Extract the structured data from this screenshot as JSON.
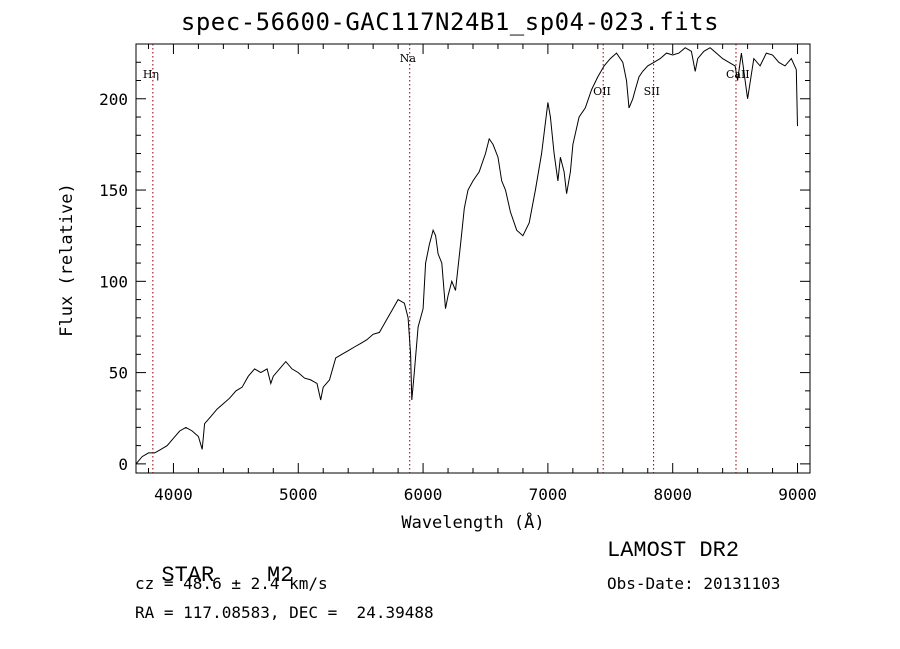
{
  "figure": {
    "title": "spec-56600-GAC117N24B1_sp04-023.fits",
    "object_class": "STAR",
    "subclass": "M2",
    "redshift_text": "cz = 48.6 ± 2.4 km/s",
    "coords_text": "RA = 117.08583, DEC =  24.39488",
    "survey": "LAMOST DR2",
    "obs_date_text": "Obs-Date: 20131103"
  },
  "chart_data": {
    "type": "line",
    "title": "spec-56600-GAC117N24B1_sp04-023.fits",
    "xlabel": "Wavelength (Å)",
    "ylabel": "Flux (relative)",
    "xlim": [
      3700,
      9100
    ],
    "ylim": [
      -5,
      230
    ],
    "xticks": [
      4000,
      5000,
      6000,
      7000,
      8000,
      9000
    ],
    "yticks": [
      0,
      50,
      100,
      150,
      200
    ],
    "series": [
      {
        "x": [
          3700,
          3750,
          3800,
          3850,
          3900,
          3950,
          4000,
          4050,
          4100,
          4150,
          4200,
          4230,
          4250,
          4300,
          4350,
          4400,
          4450,
          4500,
          4550,
          4600,
          4650,
          4700,
          4750,
          4780,
          4800,
          4850,
          4900,
          4950,
          5000,
          5050,
          5100,
          5150,
          5180,
          5200,
          5250,
          5300,
          5350,
          5400,
          5450,
          5500,
          5550,
          5600,
          5650,
          5700,
          5750,
          5800,
          5850,
          5880,
          5900,
          5910,
          5930,
          5960,
          6000,
          6020,
          6050,
          6080,
          6100,
          6120,
          6150,
          6180,
          6200,
          6230,
          6260,
          6300,
          6330,
          6360,
          6400,
          6450,
          6500,
          6530,
          6560,
          6600,
          6630,
          6660,
          6700,
          6750,
          6800,
          6850,
          6900,
          6950,
          7000,
          7020,
          7050,
          7080,
          7100,
          7130,
          7150,
          7180,
          7200,
          7250,
          7300,
          7350,
          7400,
          7450,
          7500,
          7550,
          7600,
          7630,
          7650,
          7680,
          7700,
          7730,
          7760,
          7800,
          7850,
          7900,
          7950,
          8000,
          8050,
          8100,
          8150,
          8180,
          8200,
          8250,
          8300,
          8350,
          8400,
          8450,
          8500,
          8520,
          8550,
          8600,
          8650,
          8700,
          8750,
          8800,
          8850,
          8900,
          8950,
          8990,
          9000
        ],
        "y": [
          0,
          4,
          6,
          6,
          8,
          10,
          14,
          18,
          20,
          18,
          15,
          8,
          22,
          26,
          30,
          33,
          36,
          40,
          42,
          48,
          52,
          50,
          52,
          44,
          48,
          52,
          56,
          52,
          50,
          47,
          46,
          44,
          35,
          42,
          46,
          58,
          60,
          62,
          64,
          66,
          68,
          71,
          72,
          78,
          84,
          90,
          88,
          80,
          60,
          35,
          50,
          75,
          85,
          110,
          120,
          128,
          125,
          115,
          110,
          85,
          92,
          100,
          95,
          120,
          140,
          150,
          155,
          160,
          170,
          178,
          175,
          168,
          155,
          150,
          138,
          128,
          125,
          132,
          150,
          170,
          198,
          190,
          170,
          155,
          168,
          160,
          148,
          160,
          175,
          190,
          195,
          205,
          212,
          218,
          222,
          225,
          220,
          210,
          195,
          200,
          205,
          212,
          215,
          218,
          220,
          222,
          225,
          224,
          225,
          228,
          226,
          215,
          222,
          226,
          228,
          225,
          222,
          220,
          218,
          210,
          225,
          200,
          222,
          218,
          225,
          224,
          220,
          218,
          222,
          216,
          185
        ]
      }
    ],
    "lines": [
      {
        "label": "Hη",
        "x": 3835
      },
      {
        "label": "Na",
        "x": 5893
      },
      {
        "label": "OII",
        "x": 7443
      },
      {
        "label": "SII",
        "x": 7847
      },
      {
        "label": "CaII",
        "x": 8507
      }
    ]
  },
  "colors": {
    "axis": "#000000",
    "spectrum": "#000000",
    "line_marker": "#8b0000"
  }
}
